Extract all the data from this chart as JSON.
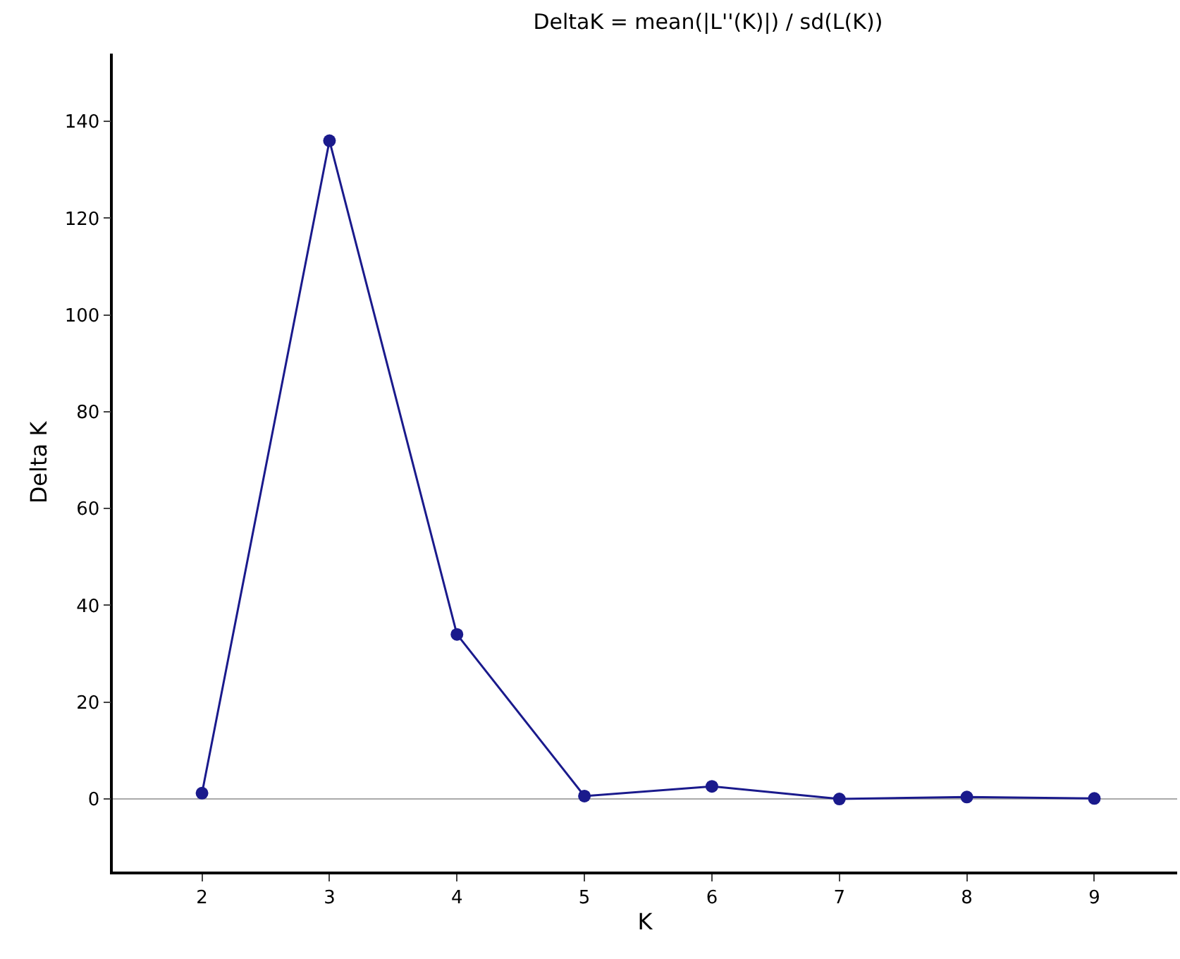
{
  "chart_data": {
    "type": "line",
    "title": "DeltaK = mean(|L''(K)|) / sd(L(K))",
    "xlabel": "K",
    "ylabel": "Delta K",
    "x": [
      2,
      3,
      4,
      5,
      6,
      7,
      8,
      9
    ],
    "series": [
      {
        "color": "#1a1a8c",
        "values": [
          1.2,
          136,
          34,
          0.6,
          2.6,
          0,
          0.4,
          0.1
        ]
      }
    ],
    "xlim": [
      1.3,
      9.65
    ],
    "xticks": [
      2,
      3,
      4,
      5,
      6,
      7,
      8,
      9
    ],
    "ylim": [
      -15,
      154
    ],
    "yticks": [
      0,
      20,
      40,
      60,
      80,
      100,
      120,
      140
    ],
    "ref_lines": [
      {
        "axis": "y",
        "value": 0,
        "color": "#aaaaaa"
      }
    ],
    "marker": "circle",
    "line_style": "solid",
    "grid": false,
    "legend": false
  }
}
